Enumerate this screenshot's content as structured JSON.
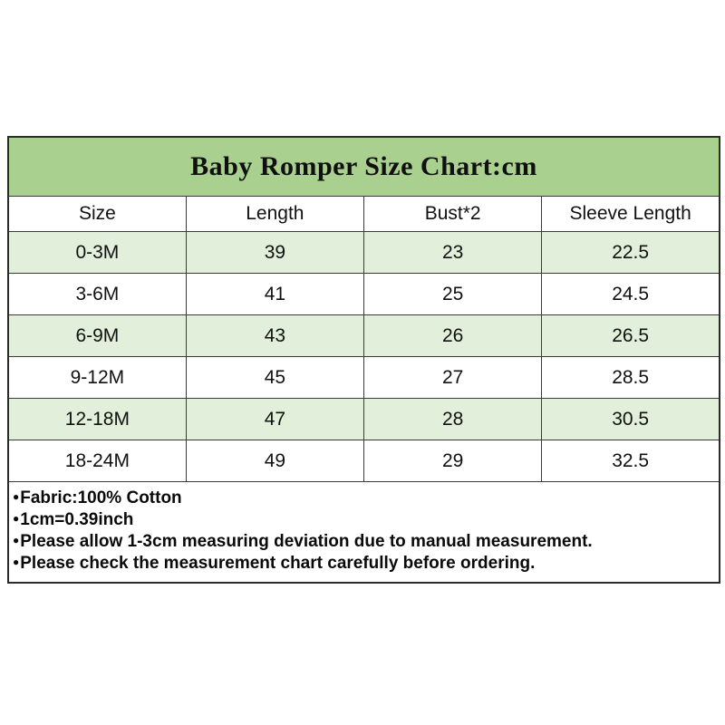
{
  "bullet": "●",
  "colors": {
    "title_bg": "#a9d08e",
    "row_alt_bg": "#e2efda",
    "border": "#3a3a3a",
    "text": "#111111",
    "page_bg": "#ffffff"
  },
  "chart_data": {
    "type": "table",
    "title": "Baby Romper Size Chart:cm",
    "unit": "cm",
    "columns": [
      "Size",
      "Length",
      "Bust*2",
      "Sleeve Length"
    ],
    "rows": [
      [
        "0-3M",
        "39",
        "23",
        "22.5"
      ],
      [
        "3-6M",
        "41",
        "25",
        "24.5"
      ],
      [
        "6-9M",
        "43",
        "26",
        "26.5"
      ],
      [
        "9-12M",
        "45",
        "27",
        "28.5"
      ],
      [
        "12-18M",
        "47",
        "28",
        "30.5"
      ],
      [
        "18-24M",
        "49",
        "29",
        "32.5"
      ]
    ],
    "notes": [
      "Fabric:100% Cotton",
      "1cm=0.39inch",
      "Please allow 1-3cm measuring deviation due to manual measurement.",
      "Please check the measurement chart carefully before ordering."
    ]
  }
}
